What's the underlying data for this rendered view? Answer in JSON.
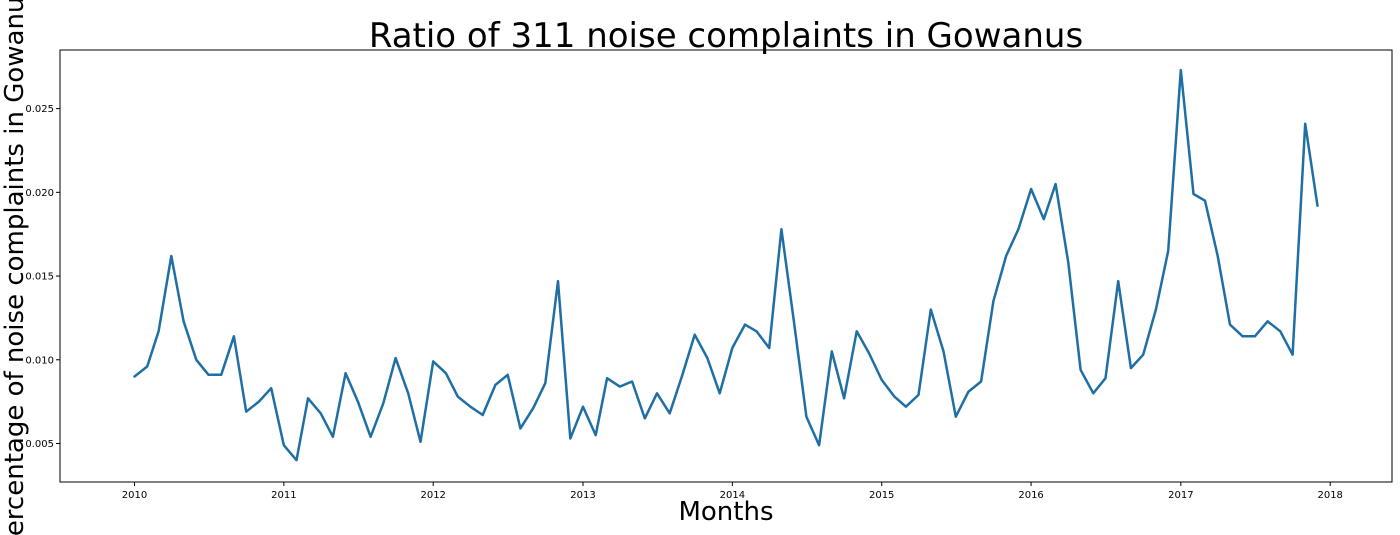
{
  "chart_data": {
    "type": "line",
    "title": "Ratio of 311 noise complaints in Gowanus",
    "xlabel": "Months",
    "ylabel": "Percentage of noise complaints in Gowanus",
    "x_ticks": [
      "2010",
      "2011",
      "2012",
      "2013",
      "2014",
      "2015",
      "2016",
      "2017",
      "2018"
    ],
    "y_ticks": [
      "0.005",
      "0.010",
      "0.015",
      "0.020",
      "0.025"
    ],
    "xlim": [
      "2009-07-03",
      "2018-06-01"
    ],
    "ylim": [
      0.0027,
      0.0285
    ],
    "grid": false,
    "legend": "none",
    "series_color": "#1f6fa4",
    "series": [
      {
        "x": [
          "2010-01-01",
          "2010-02-01",
          "2010-03-01",
          "2010-04-01",
          "2010-05-01",
          "2010-06-01",
          "2010-07-01",
          "2010-08-01",
          "2010-09-01",
          "2010-10-01",
          "2010-11-01",
          "2010-12-01",
          "2011-01-01",
          "2011-02-01",
          "2011-03-01",
          "2011-04-01",
          "2011-05-01",
          "2011-06-01",
          "2011-07-01",
          "2011-08-01",
          "2011-09-01",
          "2011-10-01",
          "2011-11-01",
          "2011-12-01",
          "2012-01-01",
          "2012-02-01",
          "2012-03-01",
          "2012-04-01",
          "2012-05-01",
          "2012-06-01",
          "2012-07-01",
          "2012-08-01",
          "2012-09-01",
          "2012-10-01",
          "2012-11-01",
          "2012-12-01",
          "2013-01-01",
          "2013-02-01",
          "2013-03-01",
          "2013-04-01",
          "2013-05-01",
          "2013-06-01",
          "2013-07-01",
          "2013-08-01",
          "2013-09-01",
          "2013-10-01",
          "2013-11-01",
          "2013-12-01",
          "2014-01-01",
          "2014-02-01",
          "2014-03-01",
          "2014-04-01",
          "2014-05-01",
          "2014-06-01",
          "2014-07-01",
          "2014-08-01",
          "2014-09-01",
          "2014-10-01",
          "2014-11-01",
          "2014-12-01",
          "2015-01-01",
          "2015-02-01",
          "2015-03-01",
          "2015-04-01",
          "2015-05-01",
          "2015-06-01",
          "2015-07-01",
          "2015-08-01",
          "2015-09-01",
          "2015-10-01",
          "2015-11-01",
          "2015-12-01",
          "2016-01-01",
          "2016-02-01",
          "2016-03-01",
          "2016-04-01",
          "2016-05-01",
          "2016-06-01",
          "2016-07-01",
          "2016-08-01",
          "2016-09-01",
          "2016-10-01",
          "2016-11-01",
          "2016-12-01",
          "2017-01-01",
          "2017-02-01",
          "2017-03-01",
          "2017-04-01",
          "2017-05-01",
          "2017-06-01",
          "2017-07-01",
          "2017-08-01",
          "2017-09-01",
          "2017-10-01",
          "2017-11-01",
          "2017-12-01"
        ],
        "values": [
          0.009,
          0.0096,
          0.0117,
          0.0162,
          0.0123,
          0.01,
          0.0091,
          0.0091,
          0.0114,
          0.0069,
          0.0075,
          0.0083,
          0.0049,
          0.004,
          0.0077,
          0.0068,
          0.0054,
          0.0092,
          0.0075,
          0.0054,
          0.0074,
          0.0101,
          0.008,
          0.0051,
          0.0099,
          0.0092,
          0.0078,
          0.0072,
          0.0067,
          0.0085,
          0.0091,
          0.0059,
          0.0071,
          0.0086,
          0.0147,
          0.0053,
          0.0072,
          0.0055,
          0.0089,
          0.0084,
          0.0087,
          0.0065,
          0.008,
          0.0068,
          0.0091,
          0.0115,
          0.0101,
          0.008,
          0.0107,
          0.0121,
          0.0117,
          0.0107,
          0.0178,
          0.0122,
          0.0066,
          0.0049,
          0.0105,
          0.0077,
          0.0117,
          0.0104,
          0.0088,
          0.0078,
          0.0072,
          0.0079,
          0.013,
          0.0105,
          0.0066,
          0.0081,
          0.0087,
          0.0135,
          0.0162,
          0.0178,
          0.0202,
          0.0184,
          0.0205,
          0.0158,
          0.0094,
          0.008,
          0.0089,
          0.0147,
          0.0095,
          0.0103,
          0.013,
          0.0165,
          0.0273,
          0.0199,
          0.0195,
          0.0162,
          0.0121,
          0.0114,
          0.0114,
          0.0123,
          0.0117,
          0.0103,
          0.0241,
          0.0192
        ]
      }
    ]
  }
}
